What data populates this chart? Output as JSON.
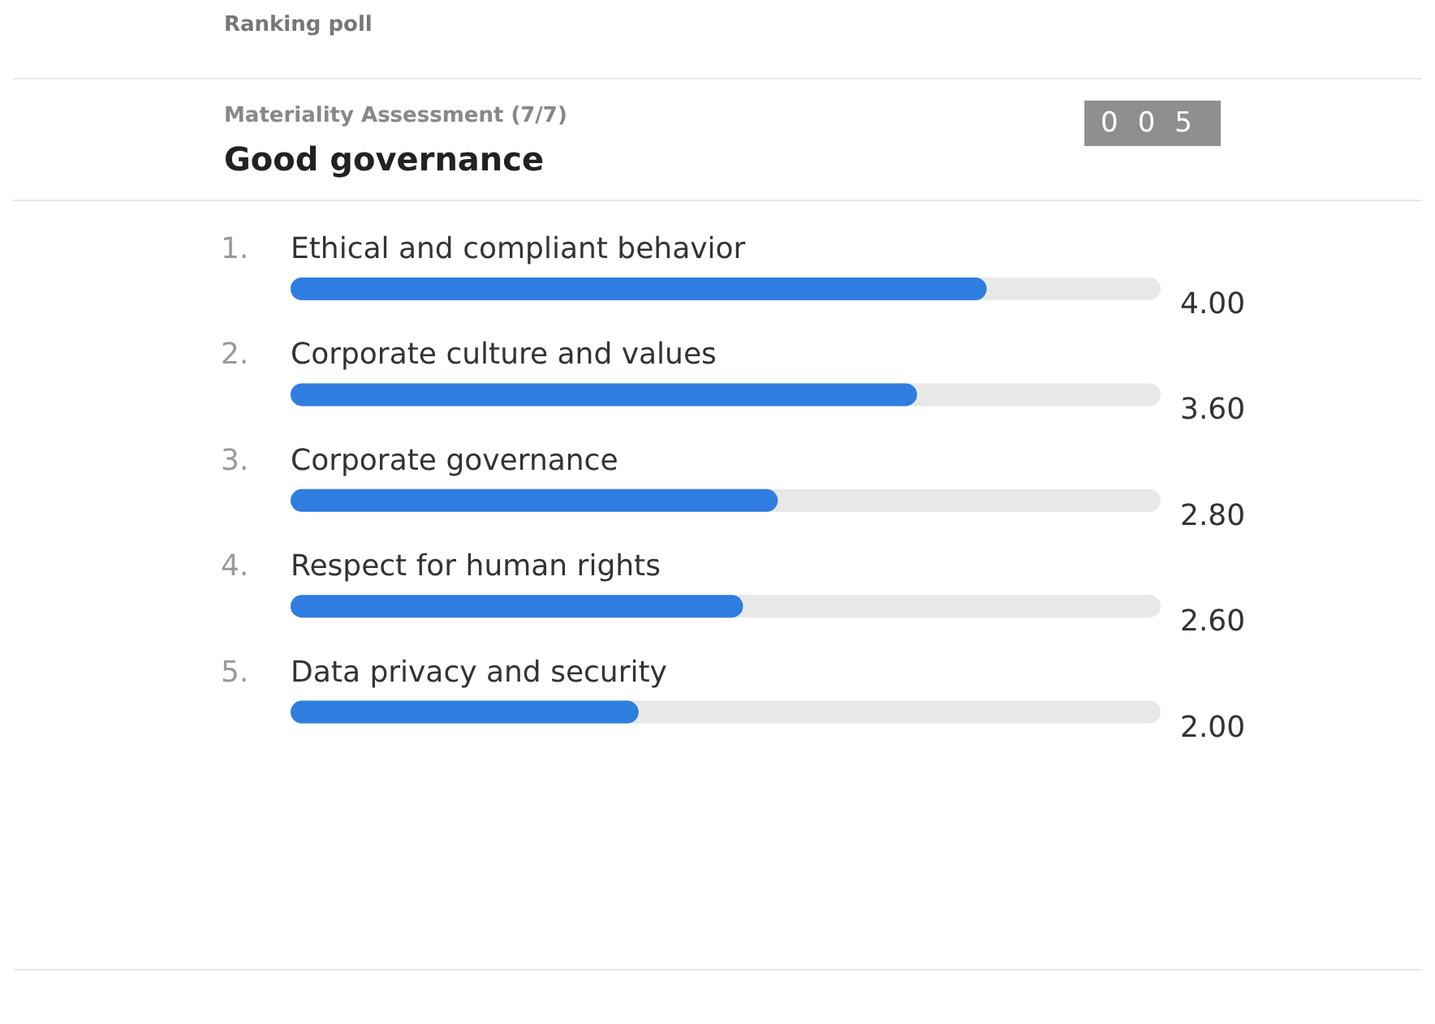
{
  "chart_data": {
    "type": "bar",
    "orientation": "horizontal",
    "title": "Good governance",
    "subtitle": "Materiality Assessment (7/7)",
    "annotations": [
      "Ranking poll",
      "005"
    ],
    "categories": [
      "1. Ethical and compliant behavior",
      "2. Corporate culture and values",
      "3. Corporate governance",
      "4. Respect for human rights",
      "5. Data privacy and security"
    ],
    "values": [
      4.0,
      3.6,
      2.8,
      2.6,
      2.0
    ],
    "value_labels": [
      "4.00",
      "3.60",
      "2.80",
      "2.60",
      "2.00"
    ],
    "color": "#2f7de1",
    "xlim": [
      0,
      5
    ]
  }
}
